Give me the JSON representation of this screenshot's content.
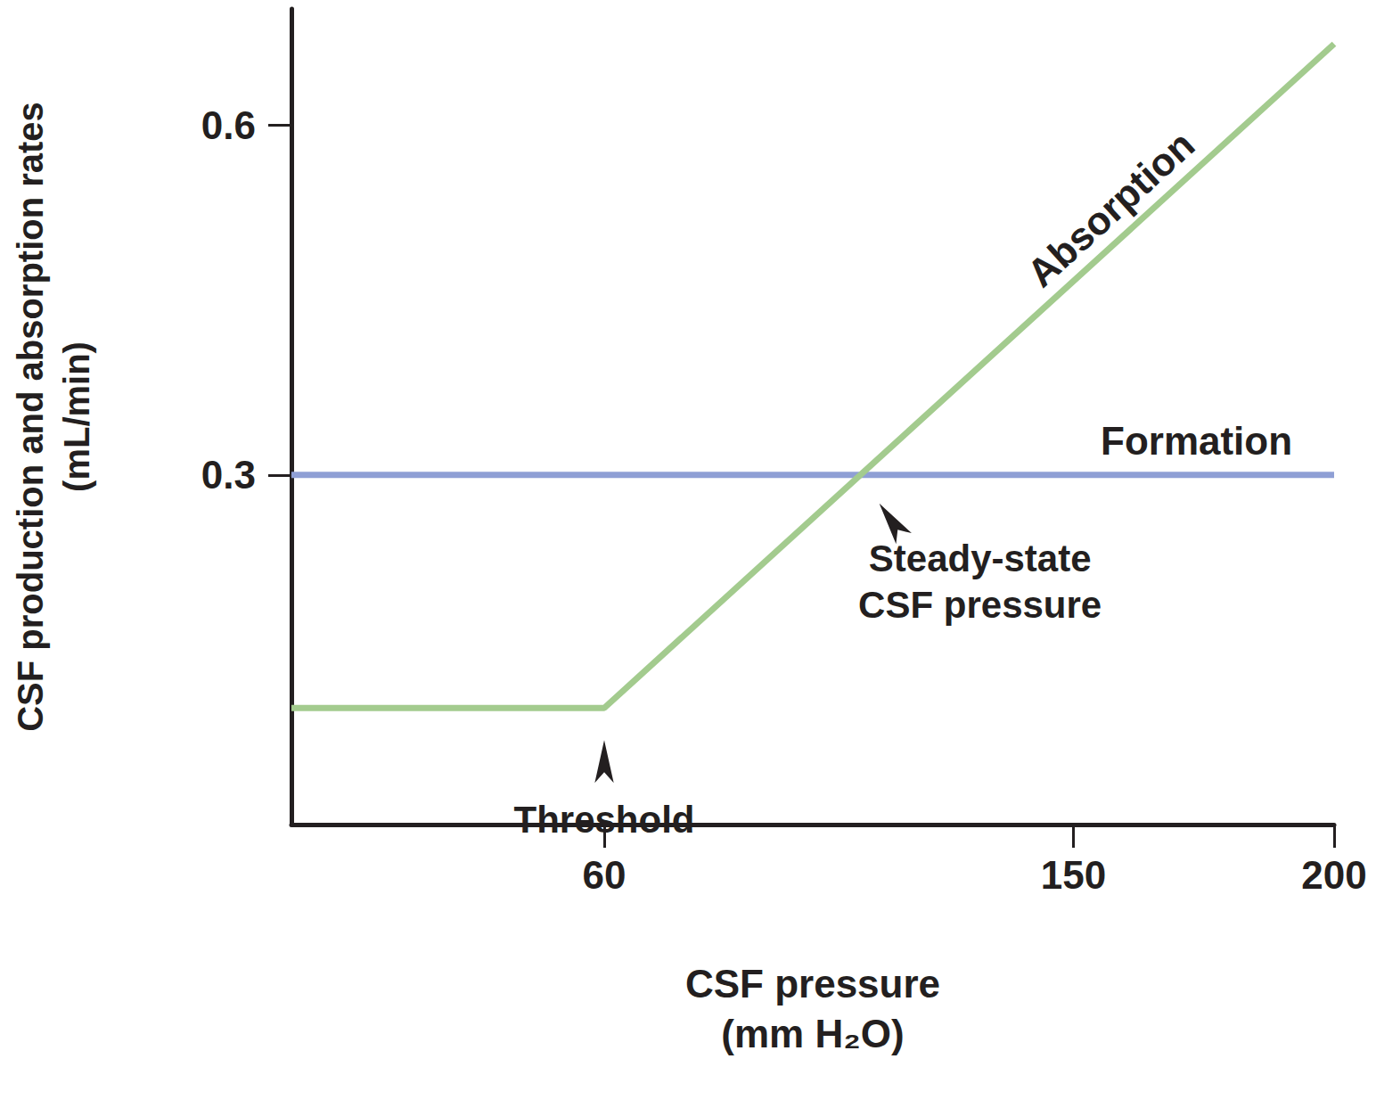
{
  "chart_data": {
    "type": "line",
    "x_label": "CSF pressure\n(mm H₂O)",
    "y_label": "CSF production and absorption rates\n(mL/min)",
    "xlim": [
      0,
      200
    ],
    "xticks": [
      60,
      150,
      200
    ],
    "ylim": [
      0,
      0.7
    ],
    "yticks": [
      0.3,
      0.6
    ],
    "grid": false,
    "series": [
      {
        "name": "Formation",
        "color": "#8f9fd5",
        "x": [
          0,
          200
        ],
        "values": [
          0.3,
          0.3
        ]
      },
      {
        "name": "Absorption",
        "color": "#a3cb8e",
        "x": [
          0,
          60,
          200
        ],
        "values": [
          0.1,
          0.1,
          0.67
        ]
      }
    ],
    "annotations": [
      {
        "text": "Threshold",
        "x": 60,
        "y": 0.1
      },
      {
        "text": "Steady-state\nCSF pressure",
        "x": 109,
        "y": 0.3
      }
    ]
  }
}
